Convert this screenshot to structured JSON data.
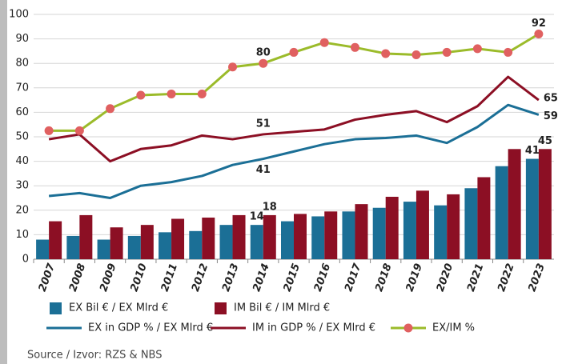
{
  "chart_data": {
    "type": "combo",
    "categories": [
      "2007",
      "2008",
      "2009",
      "2010",
      "2011",
      "2012",
      "2013",
      "2014",
      "2015",
      "2016",
      "2017",
      "2018",
      "2019",
      "2020",
      "2021",
      "2022",
      "2023"
    ],
    "ylim": [
      0,
      100
    ],
    "yticks": [
      0,
      10,
      20,
      30,
      40,
      50,
      60,
      70,
      80,
      90,
      100
    ],
    "grid": true,
    "series": [
      {
        "name": "EX Bil € / EX Mlrd €",
        "type": "bar",
        "color": "#1b6f96",
        "values": [
          8,
          9.5,
          8,
          9.5,
          11,
          11.5,
          14,
          14,
          15.5,
          17.5,
          19.5,
          21,
          23.5,
          22,
          29,
          38,
          41
        ],
        "value_labels": [
          null,
          null,
          null,
          null,
          null,
          null,
          null,
          "14",
          null,
          null,
          null,
          null,
          null,
          null,
          null,
          null,
          "41"
        ]
      },
      {
        "name": "IM Bil € / IM Mlrd €",
        "type": "bar",
        "color": "#8c0f24",
        "values": [
          15.5,
          18,
          13,
          14,
          16.5,
          17,
          18,
          18,
          18.5,
          19.5,
          22.5,
          25.5,
          28,
          26.5,
          33.5,
          45,
          45
        ],
        "value_labels": [
          null,
          null,
          null,
          null,
          null,
          null,
          null,
          "18",
          null,
          null,
          null,
          null,
          null,
          null,
          null,
          null,
          "45"
        ]
      },
      {
        "name": "EX in GDP % / EX Mlrd €",
        "type": "line",
        "color": "#1b6f96",
        "values": [
          25.8,
          27,
          25,
          30,
          31.5,
          34,
          38.5,
          41,
          44,
          47,
          49,
          49.5,
          50.5,
          47.5,
          54,
          63,
          59
        ],
        "value_labels": [
          null,
          null,
          null,
          null,
          null,
          null,
          null,
          "41",
          null,
          null,
          null,
          null,
          null,
          null,
          null,
          null,
          "59"
        ]
      },
      {
        "name": "IM in GDP % / EX Mlrd €",
        "type": "line",
        "color": "#8c0f24",
        "values": [
          49,
          51,
          40,
          45,
          46.5,
          50.5,
          49,
          51,
          52,
          53,
          57,
          59,
          60.5,
          56,
          62.5,
          74.5,
          65
        ],
        "value_labels": [
          null,
          null,
          null,
          null,
          null,
          null,
          null,
          "51",
          null,
          null,
          null,
          null,
          null,
          null,
          null,
          null,
          "65"
        ]
      },
      {
        "name": "EX/IM %",
        "type": "line",
        "color": "#9bbb2a",
        "marker_color": "#e06060",
        "values": [
          52.5,
          52.5,
          61.5,
          67,
          67.5,
          67.5,
          78.5,
          80,
          84.5,
          88.5,
          86.5,
          84,
          83.5,
          84.5,
          86,
          84.5,
          92
        ],
        "value_labels": [
          null,
          null,
          null,
          null,
          null,
          null,
          null,
          "80",
          null,
          null,
          null,
          null,
          null,
          null,
          null,
          null,
          "92"
        ]
      }
    ],
    "source": "Source / Izvor: RZS & NBS"
  }
}
